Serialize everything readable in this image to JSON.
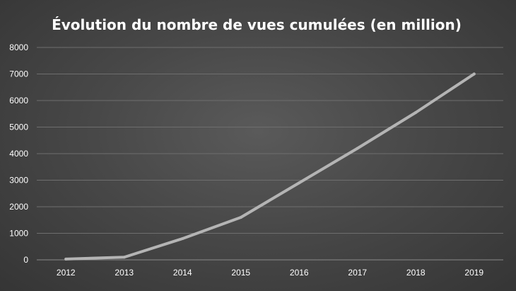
{
  "chart_data": {
    "type": "line",
    "title": "Évolution du nombre de vues cumulées (en million)",
    "xlabel": "",
    "ylabel": "",
    "categories": [
      "2012",
      "2013",
      "2014",
      "2015",
      "2016",
      "2017",
      "2018",
      "2019"
    ],
    "series": [
      {
        "values": [
          30,
          100,
          800,
          1600,
          2900,
          4200,
          5550,
          7000
        ]
      }
    ],
    "ylim": [
      0,
      8000
    ],
    "yticks": [
      "0",
      "1000",
      "2000",
      "3000",
      "4000",
      "5000",
      "6000",
      "7000",
      "8000"
    ],
    "grid": true,
    "legend": "none",
    "colors": {
      "background": "#484848",
      "line": "#b4b4b4",
      "grid": "#6e6e6e",
      "text": "#ffffff"
    }
  }
}
